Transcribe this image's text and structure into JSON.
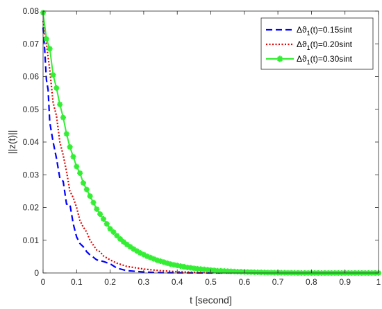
{
  "chart_data": {
    "type": "line",
    "xlabel": "t [second]",
    "ylabel": "||z(t)||",
    "xlim": [
      0,
      1
    ],
    "ylim": [
      0,
      0.08
    ],
    "xticks": [
      0,
      0.1,
      0.2,
      0.3,
      0.4,
      0.5,
      0.6,
      0.7,
      0.8,
      0.9,
      1
    ],
    "xtick_labels": [
      "0",
      "0.1",
      "0.2",
      "0.3",
      "0.4",
      "0.5",
      "0.6",
      "0.7",
      "0.8",
      "0.9",
      "1"
    ],
    "yticks": [
      0,
      0.01,
      0.02,
      0.03,
      0.04,
      0.05,
      0.06,
      0.07,
      0.08
    ],
    "ytick_labels": [
      "0",
      "0.01",
      "0.02",
      "0.03",
      "0.04",
      "0.05",
      "0.06",
      "0.07",
      "0.08"
    ],
    "grid": false,
    "legend_position": "top-right",
    "series": [
      {
        "name": "Δϑ1(t)=0.15sint",
        "legend_main": "Δϑ",
        "legend_sub": "1",
        "legend_rest": "(t)=0.15sint",
        "color": "#0000ff",
        "style": "dashed",
        "marker": "none",
        "x": [
          0,
          0.005,
          0.01,
          0.015,
          0.02,
          0.03,
          0.04,
          0.05,
          0.06,
          0.07,
          0.08,
          0.09,
          0.1,
          0.11,
          0.12,
          0.13,
          0.14,
          0.15,
          0.16,
          0.18,
          0.2,
          0.22,
          0.25,
          0.3,
          0.35,
          0.4,
          0.5,
          0.6,
          0.8,
          1.0
        ],
        "y": [
          0.075,
          0.068,
          0.059,
          0.056,
          0.046,
          0.04,
          0.035,
          0.029,
          0.028,
          0.021,
          0.021,
          0.015,
          0.011,
          0.009,
          0.008,
          0.0065,
          0.0055,
          0.0048,
          0.004,
          0.0035,
          0.0028,
          0.0015,
          0.0007,
          0.0003,
          0.0001,
          5e-05,
          0,
          0,
          0,
          0
        ]
      },
      {
        "name": "Δϑ1(t)=0.20sint",
        "legend_main": "Δϑ",
        "legend_sub": "1",
        "legend_rest": "(t)=0.20sint",
        "color": "#e00000",
        "style": "dotted",
        "marker": "none",
        "x": [
          0,
          0.01,
          0.02,
          0.03,
          0.04,
          0.05,
          0.06,
          0.07,
          0.08,
          0.09,
          0.1,
          0.11,
          0.12,
          0.13,
          0.14,
          0.15,
          0.16,
          0.17,
          0.18,
          0.2,
          0.22,
          0.25,
          0.3,
          0.35,
          0.4,
          0.45,
          0.5,
          0.6,
          0.8,
          1.0
        ],
        "y": [
          0.077,
          0.07,
          0.062,
          0.052,
          0.048,
          0.04,
          0.036,
          0.031,
          0.025,
          0.023,
          0.02,
          0.016,
          0.014,
          0.0125,
          0.01,
          0.0085,
          0.007,
          0.0065,
          0.0052,
          0.004,
          0.003,
          0.002,
          0.0012,
          0.0007,
          0.0004,
          0.0002,
          0.0001,
          5e-05,
          0,
          0
        ]
      },
      {
        "name": "Δϑ1(t)=0.30sint",
        "legend_main": "Δϑ",
        "legend_sub": "1",
        "legend_rest": "(t)=0.30sint",
        "color": "#33ee33",
        "style": "solid",
        "marker": "star",
        "x": [
          0,
          0.01,
          0.02,
          0.03,
          0.04,
          0.05,
          0.06,
          0.07,
          0.08,
          0.09,
          0.1,
          0.11,
          0.12,
          0.13,
          0.14,
          0.15,
          0.16,
          0.17,
          0.18,
          0.19,
          0.2,
          0.21,
          0.22,
          0.23,
          0.24,
          0.25,
          0.26,
          0.27,
          0.28,
          0.29,
          0.3,
          0.31,
          0.32,
          0.33,
          0.34,
          0.35,
          0.36,
          0.37,
          0.38,
          0.39,
          0.4,
          0.41,
          0.42,
          0.43,
          0.44,
          0.45,
          0.46,
          0.47,
          0.48,
          0.49,
          0.5,
          0.51,
          0.52,
          0.53,
          0.54,
          0.55,
          0.56,
          0.57,
          0.58,
          0.59,
          0.6,
          0.61,
          0.62,
          0.63,
          0.64,
          0.65,
          0.66,
          0.67,
          0.68,
          0.69,
          0.7,
          0.71,
          0.72,
          0.73,
          0.74,
          0.75,
          0.76,
          0.77,
          0.78,
          0.79,
          0.8,
          0.81,
          0.82,
          0.83,
          0.84,
          0.85,
          0.86,
          0.87,
          0.88,
          0.89,
          0.9,
          0.91,
          0.92,
          0.93,
          0.94,
          0.95,
          0.96,
          0.97,
          0.98,
          0.99,
          1.0
        ],
        "y": [
          0.0795,
          0.0715,
          0.0685,
          0.0605,
          0.0565,
          0.0515,
          0.0475,
          0.0425,
          0.0385,
          0.0355,
          0.0325,
          0.0305,
          0.0275,
          0.0255,
          0.0235,
          0.0215,
          0.0195,
          0.018,
          0.0165,
          0.015,
          0.0135,
          0.0125,
          0.0114,
          0.0104,
          0.0095,
          0.0087,
          0.008,
          0.0073,
          0.0067,
          0.0061,
          0.0056,
          0.0051,
          0.0047,
          0.0043,
          0.0039,
          0.0036,
          0.0033,
          0.003,
          0.0027,
          0.0025,
          0.0023,
          0.0021,
          0.0019,
          0.0017,
          0.0016,
          0.0014,
          0.0013,
          0.0012,
          0.0011,
          0.001,
          0.0009,
          0.0008,
          0.0007,
          0.00065,
          0.0006,
          0.00055,
          0.0005,
          0.00045,
          0.0004,
          0.00036,
          0.00032,
          0.00029,
          0.00026,
          0.00023,
          0.0002,
          0.00018,
          0.00016,
          0.00014,
          0.00012,
          0.0001,
          9e-05,
          8e-05,
          7e-05,
          6e-05,
          5e-05,
          4e-05,
          3e-05,
          2e-05,
          1e-05,
          1e-05,
          0,
          0,
          0,
          0,
          0,
          0,
          0,
          0,
          0,
          0,
          0,
          0,
          0,
          0,
          0,
          0,
          0,
          0,
          0,
          0,
          0
        ]
      }
    ]
  }
}
